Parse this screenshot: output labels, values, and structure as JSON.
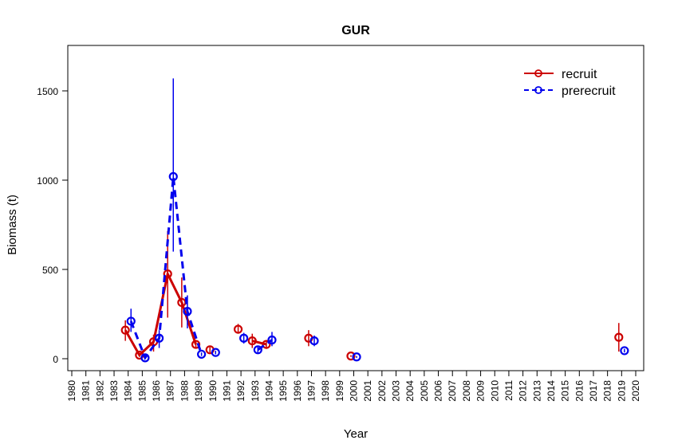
{
  "chart_data": {
    "type": "line",
    "title": "GUR",
    "xlabel": "Year",
    "ylabel": "Biomass (t)",
    "xlim": [
      1980,
      2020
    ],
    "ylim": [
      -40,
      1740
    ],
    "x_ticks": [
      1980,
      1981,
      1982,
      1983,
      1984,
      1985,
      1986,
      1987,
      1988,
      1989,
      1990,
      1991,
      1992,
      1993,
      1994,
      1995,
      1996,
      1997,
      1998,
      1999,
      2000,
      2001,
      2002,
      2003,
      2004,
      2005,
      2006,
      2007,
      2008,
      2009,
      2010,
      2011,
      2012,
      2013,
      2014,
      2015,
      2016,
      2017,
      2018,
      2019,
      2020
    ],
    "y_ticks": [
      0,
      500,
      1000,
      1500
    ],
    "legend_position": "top-right",
    "grid": false,
    "series": [
      {
        "name": "recruit",
        "color": "#cc0000",
        "line_style": "solid",
        "x_offset": -0.2,
        "points": [
          {
            "x": 1984,
            "y": 160,
            "lo": 100,
            "hi": 215
          },
          {
            "x": 1985,
            "y": 20,
            "lo": 10,
            "hi": 30
          },
          {
            "x": 1986,
            "y": 95,
            "lo": 40,
            "hi": 135
          },
          {
            "x": 1987,
            "y": 475,
            "lo": 230,
            "hi": 715
          },
          {
            "x": 1988,
            "y": 315,
            "lo": 175,
            "hi": 455
          },
          {
            "x": 1989,
            "y": 80,
            "lo": 60,
            "hi": 100
          },
          {
            "x": 1990,
            "y": 50,
            "lo": 35,
            "hi": 65
          },
          {
            "x": 1992,
            "y": 165,
            "lo": 140,
            "hi": 195
          },
          {
            "x": 1993,
            "y": 100,
            "lo": 60,
            "hi": 140
          },
          {
            "x": 1994,
            "y": 80,
            "lo": 55,
            "hi": 105
          },
          {
            "x": 1997,
            "y": 115,
            "lo": 70,
            "hi": 160
          },
          {
            "x": 2000,
            "y": 15,
            "lo": 10,
            "hi": 20
          },
          {
            "x": 2019,
            "y": 120,
            "lo": 40,
            "hi": 200
          }
        ],
        "segments": [
          [
            1984,
            1989
          ],
          [
            1993,
            1994
          ]
        ]
      },
      {
        "name": "prerecruit",
        "color": "#0000ee",
        "line_style": "dashed",
        "x_offset": 0.2,
        "points": [
          {
            "x": 1984,
            "y": 210,
            "lo": 150,
            "hi": 280
          },
          {
            "x": 1985,
            "y": 5,
            "lo": 0,
            "hi": 10
          },
          {
            "x": 1986,
            "y": 115,
            "lo": 60,
            "hi": 160
          },
          {
            "x": 1987,
            "y": 1020,
            "lo": 600,
            "hi": 1570
          },
          {
            "x": 1988,
            "y": 265,
            "lo": 170,
            "hi": 355
          },
          {
            "x": 1989,
            "y": 25,
            "lo": 15,
            "hi": 35
          },
          {
            "x": 1990,
            "y": 35,
            "lo": 25,
            "hi": 45
          },
          {
            "x": 1992,
            "y": 115,
            "lo": 85,
            "hi": 145
          },
          {
            "x": 1993,
            "y": 50,
            "lo": 30,
            "hi": 70
          },
          {
            "x": 1994,
            "y": 105,
            "lo": 70,
            "hi": 150
          },
          {
            "x": 1997,
            "y": 100,
            "lo": 70,
            "hi": 130
          },
          {
            "x": 2000,
            "y": 10,
            "lo": 5,
            "hi": 15
          },
          {
            "x": 2019,
            "y": 45,
            "lo": 35,
            "hi": 55
          }
        ],
        "segments": [
          [
            1984,
            1989
          ],
          [
            1993,
            1994
          ]
        ]
      }
    ]
  }
}
